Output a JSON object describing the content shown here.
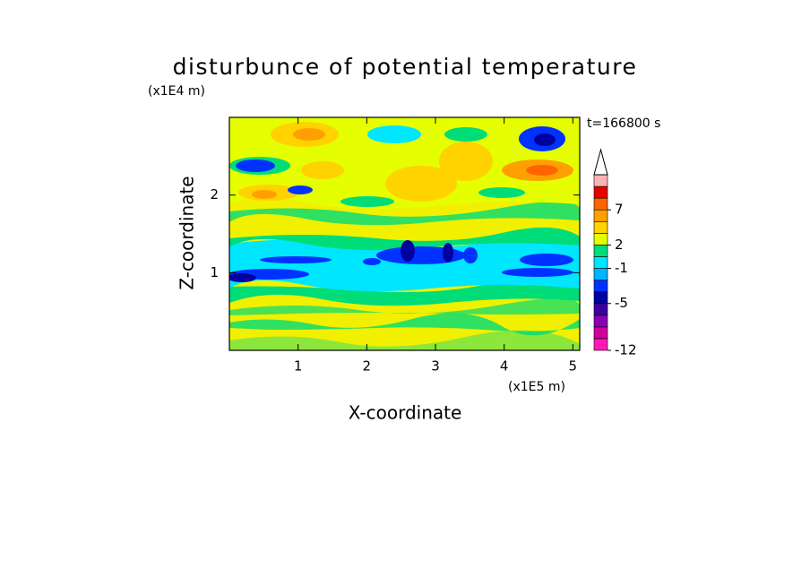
{
  "chart_data": {
    "type": "contour",
    "title": "disturbunce of potential temperature",
    "annotation": "t=166800 s",
    "x_label": "X-coordinate",
    "y_label": "Z-coordinate",
    "x_unit": "(x1E5 m)",
    "y_unit": "(x1E4 m)",
    "xlim": [
      0,
      5.1
    ],
    "xticks": [
      1,
      2,
      3,
      4,
      5
    ],
    "ylim": [
      0,
      3
    ],
    "yticks": [
      1,
      2
    ],
    "colorbar": {
      "levels": [
        -12,
        -10,
        -8,
        -6,
        -5,
        -4,
        -3,
        -1,
        0,
        2,
        3,
        5,
        7,
        9,
        11,
        13
      ],
      "colors": [
        "#ff1ab4",
        "#d2009b",
        "#8c00b4",
        "#3c00a0",
        "#0000a0",
        "#0032ff",
        "#00b4ff",
        "#00e6ff",
        "#00dc78",
        "#e6ff00",
        "#ffd200",
        "#ffa000",
        "#ff6400",
        "#e60000",
        "#ffb4b4"
      ],
      "ticks": [
        -12,
        -5,
        -1,
        2,
        7
      ],
      "extend": "max"
    }
  }
}
